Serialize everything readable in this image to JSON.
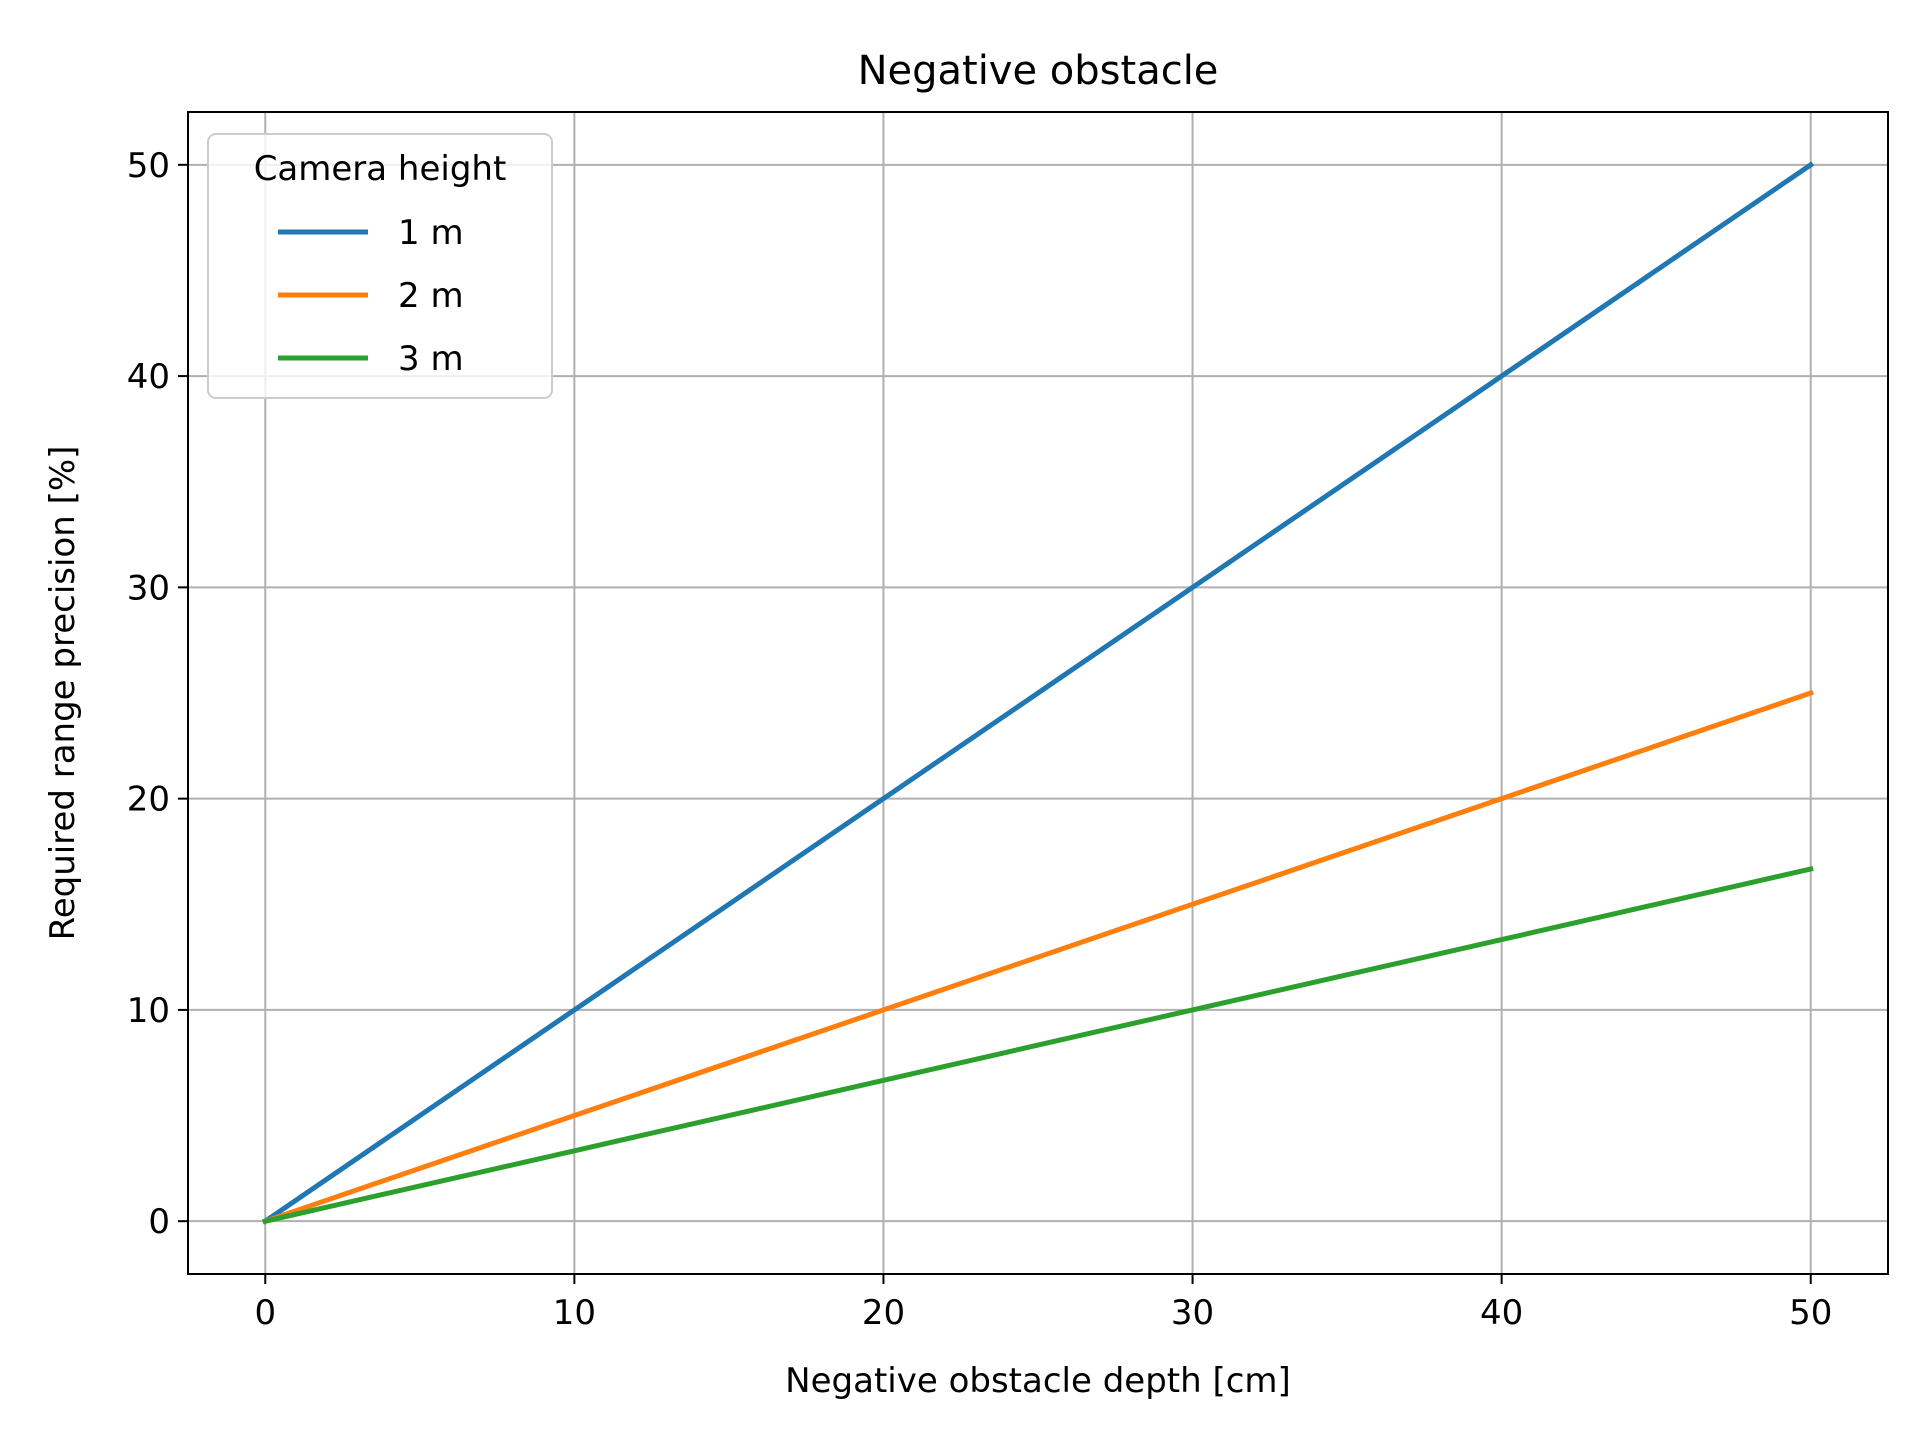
{
  "chart_data": {
    "type": "line",
    "title": "Negative obstacle",
    "xlabel": "Negative obstacle depth [cm]",
    "ylabel": "Required range precision [%]",
    "xlim": [
      -2.5,
      52.5
    ],
    "ylim": [
      -2.5,
      52.5
    ],
    "xticks": [
      0,
      10,
      20,
      30,
      40,
      50
    ],
    "yticks": [
      0,
      10,
      20,
      30,
      40,
      50
    ],
    "grid": true,
    "legend": {
      "title": "Camera height",
      "placement": "top-left"
    },
    "series": [
      {
        "name": "1 m",
        "color": "#1f77b4",
        "x": [
          0,
          10,
          20,
          30,
          40,
          50
        ],
        "y": [
          0,
          10,
          20,
          30,
          40,
          50
        ]
      },
      {
        "name": "2 m",
        "color": "#ff7f0e",
        "x": [
          0,
          10,
          20,
          30,
          40,
          50
        ],
        "y": [
          0,
          5,
          10,
          15,
          20,
          25
        ]
      },
      {
        "name": "3 m",
        "color": "#2ca02c",
        "x": [
          0,
          10,
          20,
          30,
          40,
          50
        ],
        "y": [
          0,
          3.33,
          6.67,
          10,
          13.33,
          16.67
        ]
      }
    ]
  }
}
